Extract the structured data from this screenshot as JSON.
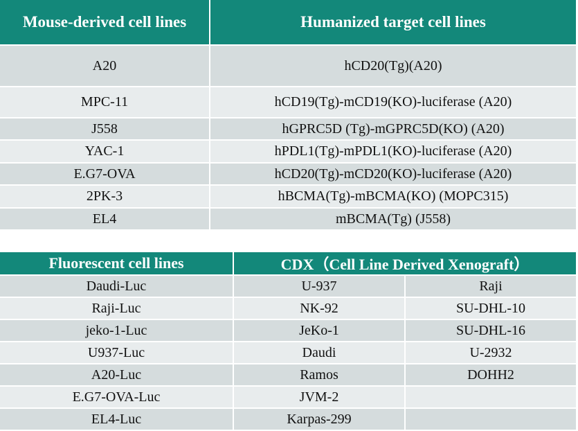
{
  "mouse_table": {
    "headers": {
      "mouse": "Mouse-derived cell lines",
      "humanized": "Humanized target cell lines"
    },
    "rows": [
      {
        "mouse": "A20",
        "humanized": "hCD20(Tg)(A20)"
      },
      {
        "mouse": "MPC-11",
        "humanized": "hCD19(Tg)-mCD19(KO)-luciferase (A20)"
      },
      {
        "mouse": "J558",
        "humanized": "hGPRC5D (Tg)-mGPRC5D(KO) (A20)"
      },
      {
        "mouse": "YAC-1",
        "humanized": "hPDL1(Tg)-mPDL1(KO)-luciferase (A20)"
      },
      {
        "mouse": "E.G7-OVA",
        "humanized": "hCD20(Tg)-mCD20(KO)-luciferase (A20)"
      },
      {
        "mouse": "2PK-3",
        "humanized": "hBCMA(Tg)-mBCMA(KO) (MOPC315)"
      },
      {
        "mouse": "EL4",
        "humanized": "mBCMA(Tg) (J558)"
      }
    ]
  },
  "fluor_table": {
    "headers": {
      "fluorescent": "Fluorescent cell lines",
      "cdx": "CDX（Cell Line Derived Xenograft）"
    },
    "rows": [
      {
        "fluorescent": "Daudi-Luc",
        "cdx1": "U-937",
        "cdx2": "Raji"
      },
      {
        "fluorescent": "Raji-Luc",
        "cdx1": "NK-92",
        "cdx2": "SU-DHL-10"
      },
      {
        "fluorescent": "jeko-1-Luc",
        "cdx1": "JeKo-1",
        "cdx2": "SU-DHL-16"
      },
      {
        "fluorescent": "U937-Luc",
        "cdx1": "Daudi",
        "cdx2": "U-2932"
      },
      {
        "fluorescent": "A20-Luc",
        "cdx1": "Ramos",
        "cdx2": "DOHH2"
      },
      {
        "fluorescent": "E.G7-OVA-Luc",
        "cdx1": "JVM-2",
        "cdx2": ""
      },
      {
        "fluorescent": "EL4-Luc",
        "cdx1": "Karpas-299",
        "cdx2": ""
      }
    ]
  }
}
